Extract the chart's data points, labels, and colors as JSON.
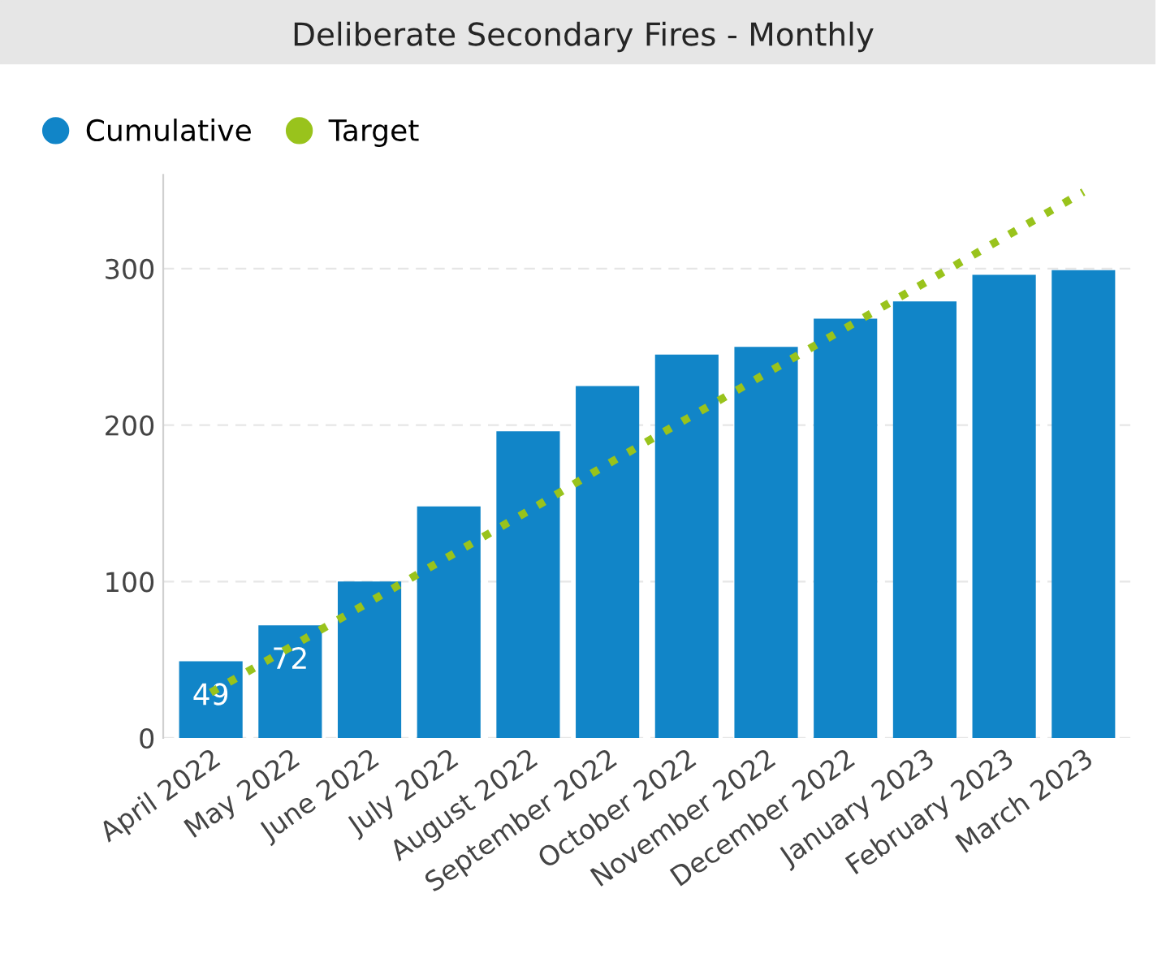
{
  "chart_data": {
    "type": "bar",
    "title": "Deliberate Secondary Fires - Monthly",
    "categories": [
      "April 2022",
      "May 2022",
      "June 2022",
      "July 2022",
      "August 2022",
      "September 2022",
      "October 2022",
      "November 2022",
      "December 2022",
      "January 2023",
      "February 2023",
      "March 2023"
    ],
    "series": [
      {
        "name": "Cumulative",
        "color": "#1185c8",
        "values": [
          49,
          72,
          100,
          148,
          196,
          225,
          245,
          250,
          268,
          279,
          296,
          299
        ],
        "value_labels": [
          "49",
          "72",
          null,
          null,
          null,
          null,
          null,
          null,
          null,
          null,
          null,
          null
        ]
      },
      {
        "name": "Target",
        "type": "line",
        "color": "#99c31c",
        "line_style": "dotted",
        "marker": "none",
        "values": [
          29,
          58,
          87,
          116,
          145,
          175,
          204,
          233,
          262,
          291,
          320,
          349
        ]
      }
    ],
    "ylim": [
      0,
      360
    ],
    "yticks": [
      0,
      100,
      200,
      300
    ],
    "grid": "y",
    "legend": "top left"
  }
}
